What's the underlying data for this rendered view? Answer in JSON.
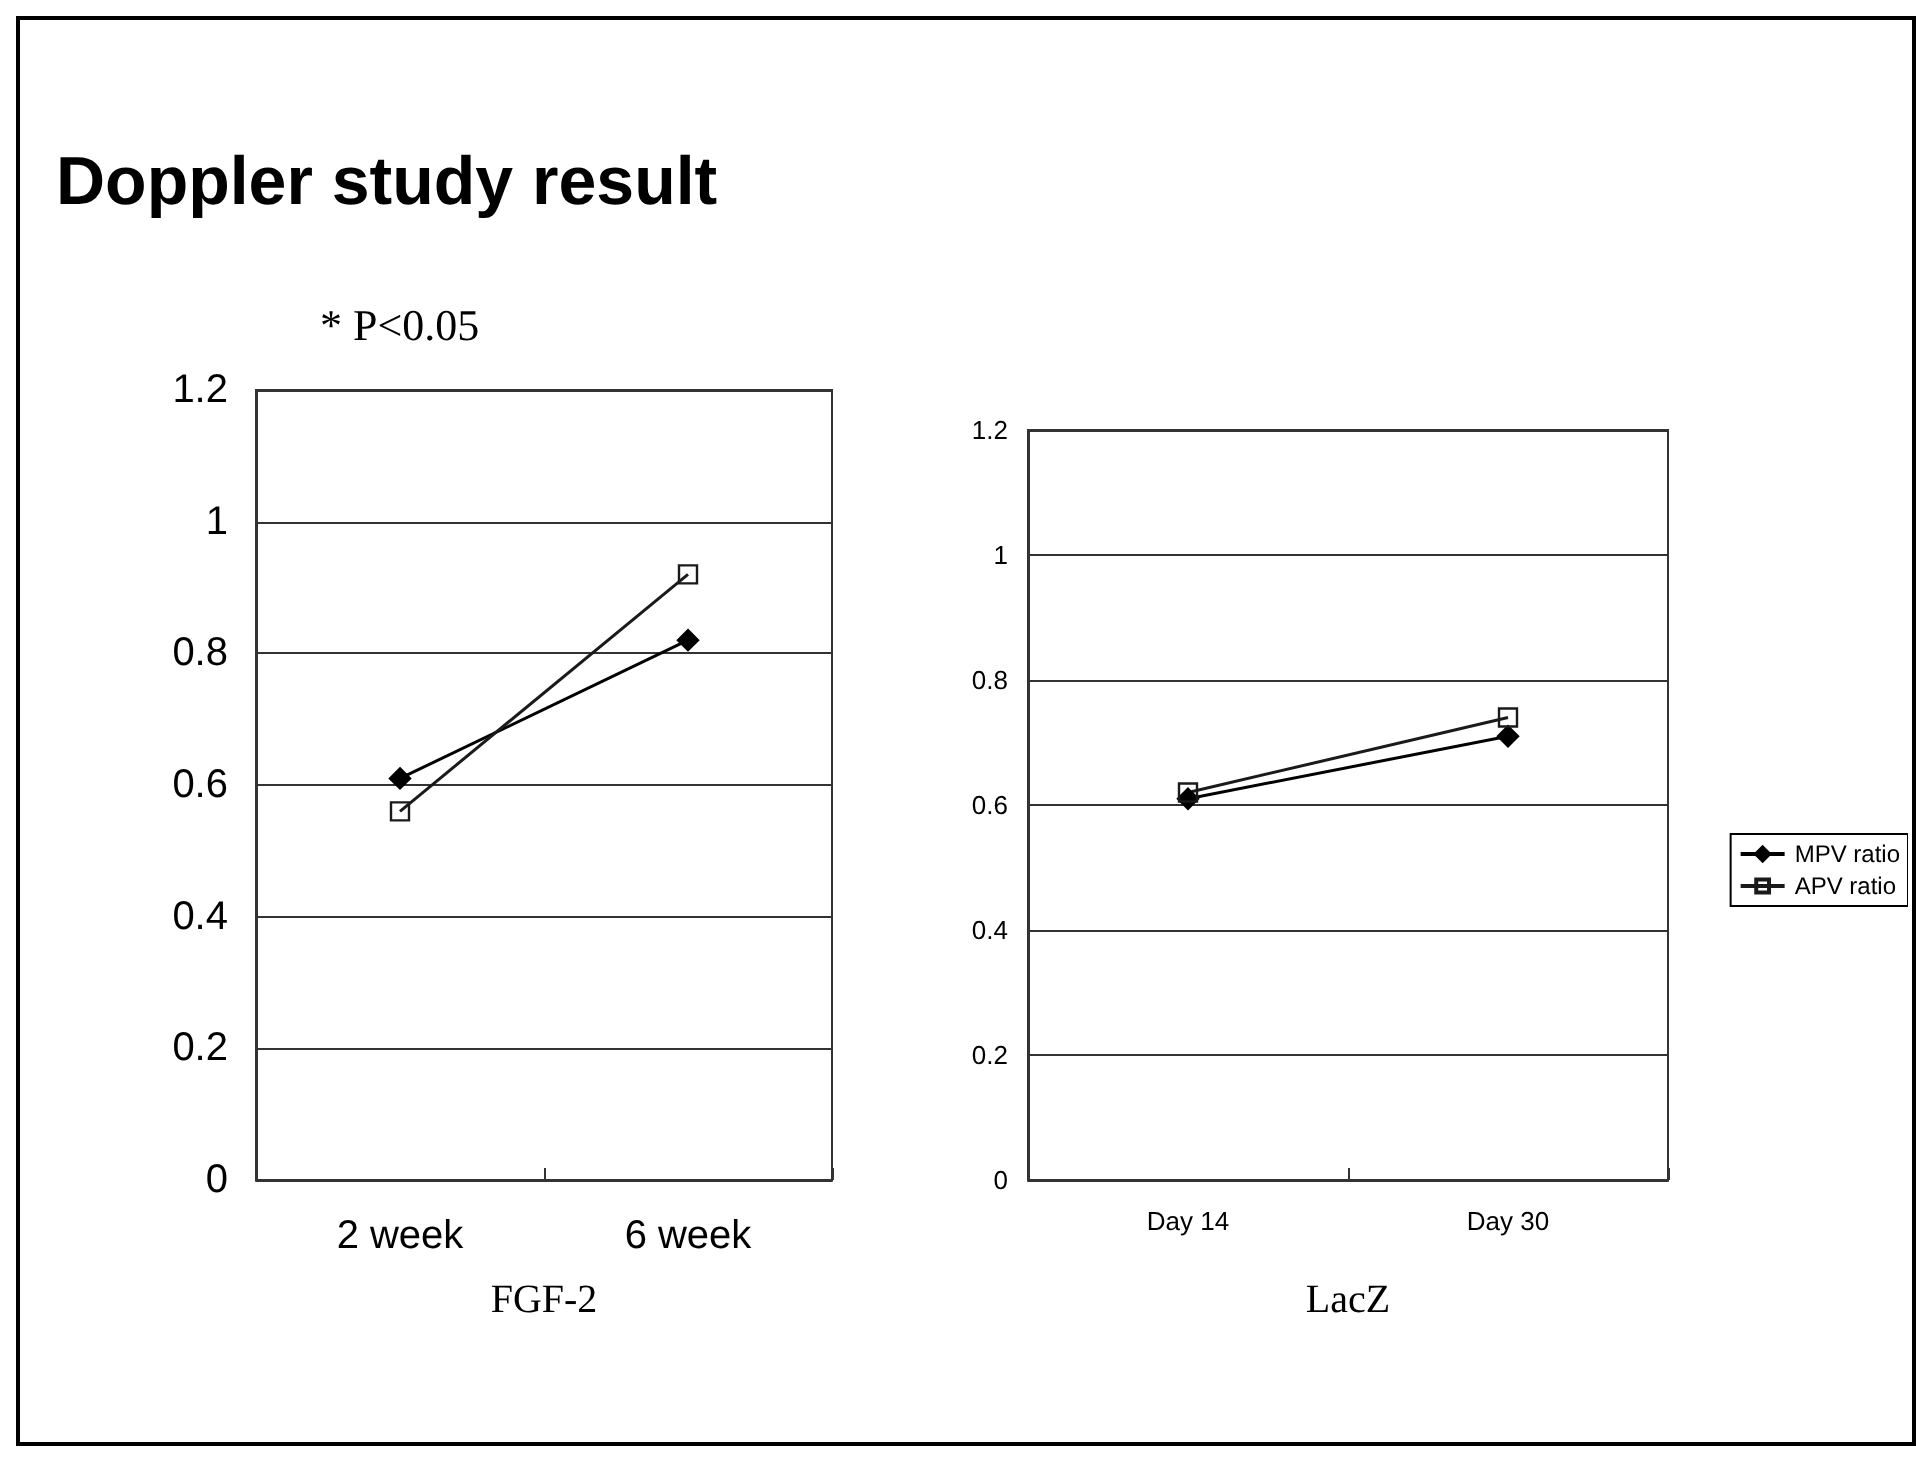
{
  "chart_data": [
    {
      "type": "line",
      "title": "Doppler study result",
      "annotations": [
        "* P<0.05"
      ],
      "xlabel": "FGF-2",
      "categories": [
        "2 week",
        "6 week"
      ],
      "series": [
        {
          "color": "#000000",
          "marker": "diamond",
          "values": [
            0.61,
            0.82
          ]
        },
        {
          "color": "#1a1a1a",
          "marker": "square",
          "values": [
            0.56,
            0.92
          ]
        }
      ],
      "ylim": [
        0,
        1.2
      ],
      "yticks": [
        0,
        0.2,
        0.4,
        0.6,
        0.8,
        1,
        1.2
      ],
      "grid": "y",
      "legend": false
    },
    {
      "type": "line",
      "xlabel": "LacZ",
      "categories": [
        "Day 14",
        "Day 30"
      ],
      "series": [
        {
          "name": "MPV ratio",
          "color": "#000000",
          "marker": "diamond",
          "values": [
            0.61,
            0.71
          ]
        },
        {
          "name": "APV ratio",
          "color": "#1a1a1a",
          "marker": "square",
          "values": [
            0.62,
            0.74
          ]
        }
      ],
      "ylim": [
        0,
        1.2
      ],
      "yticks": [
        0,
        0.2,
        0.4,
        0.6,
        0.8,
        1,
        1.2
      ],
      "grid": "y",
      "legend": "right"
    }
  ]
}
